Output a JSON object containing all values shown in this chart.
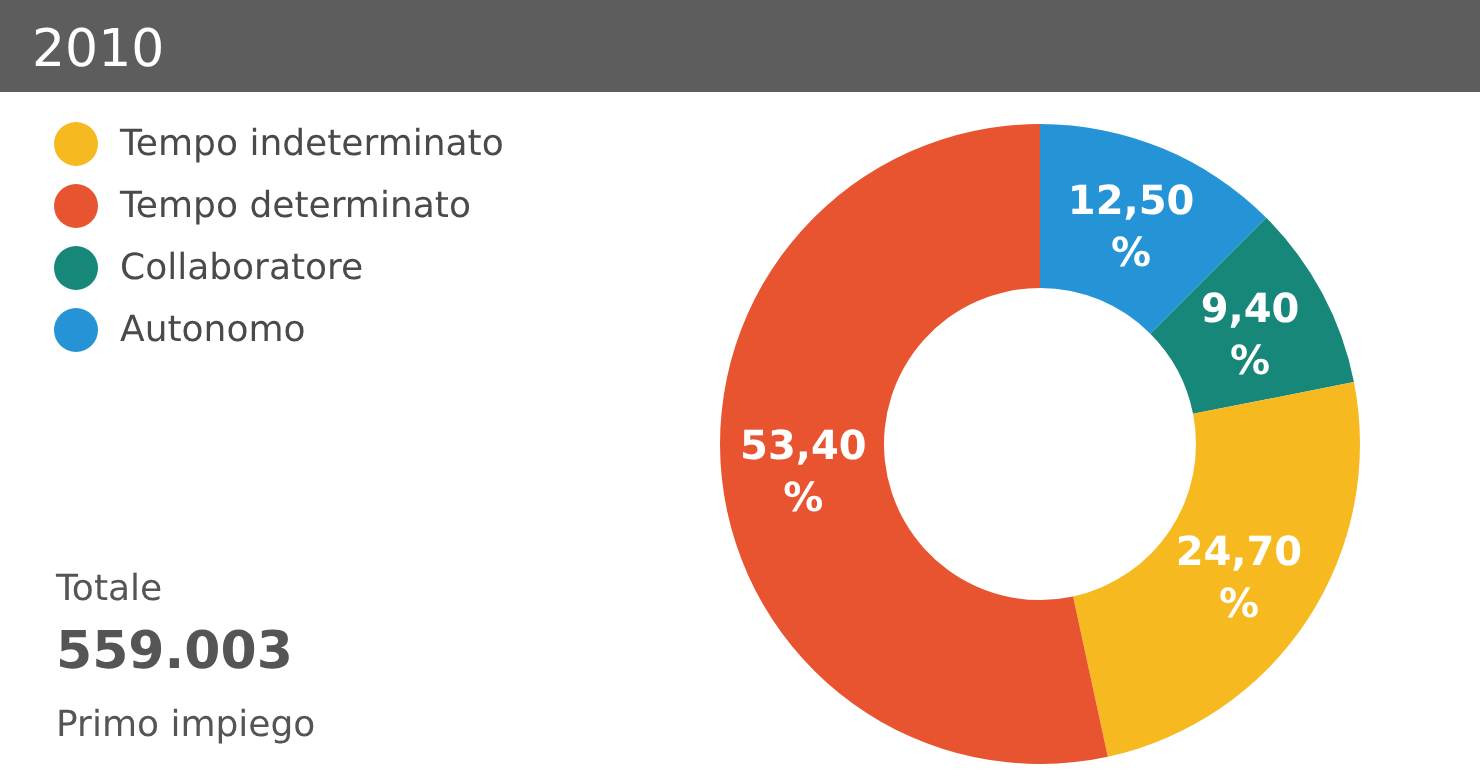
{
  "chart_data": {
    "type": "donut",
    "title": "2010",
    "categories": [
      "Tempo indeterminato",
      "Tempo determinato",
      "Collaboratore",
      "Autonomo"
    ],
    "values": [
      24.7,
      53.4,
      9.4,
      12.5
    ],
    "colors": [
      "#f7b920",
      "#e8542f",
      "#17877a",
      "#2594d6"
    ],
    "value_labels": [
      "24,70 %",
      "53,40 %",
      "9,40 %",
      "12,50 %"
    ],
    "legend": "top left",
    "annotations": [
      "Totale",
      "559.003",
      "Primo impiego"
    ]
  }
}
